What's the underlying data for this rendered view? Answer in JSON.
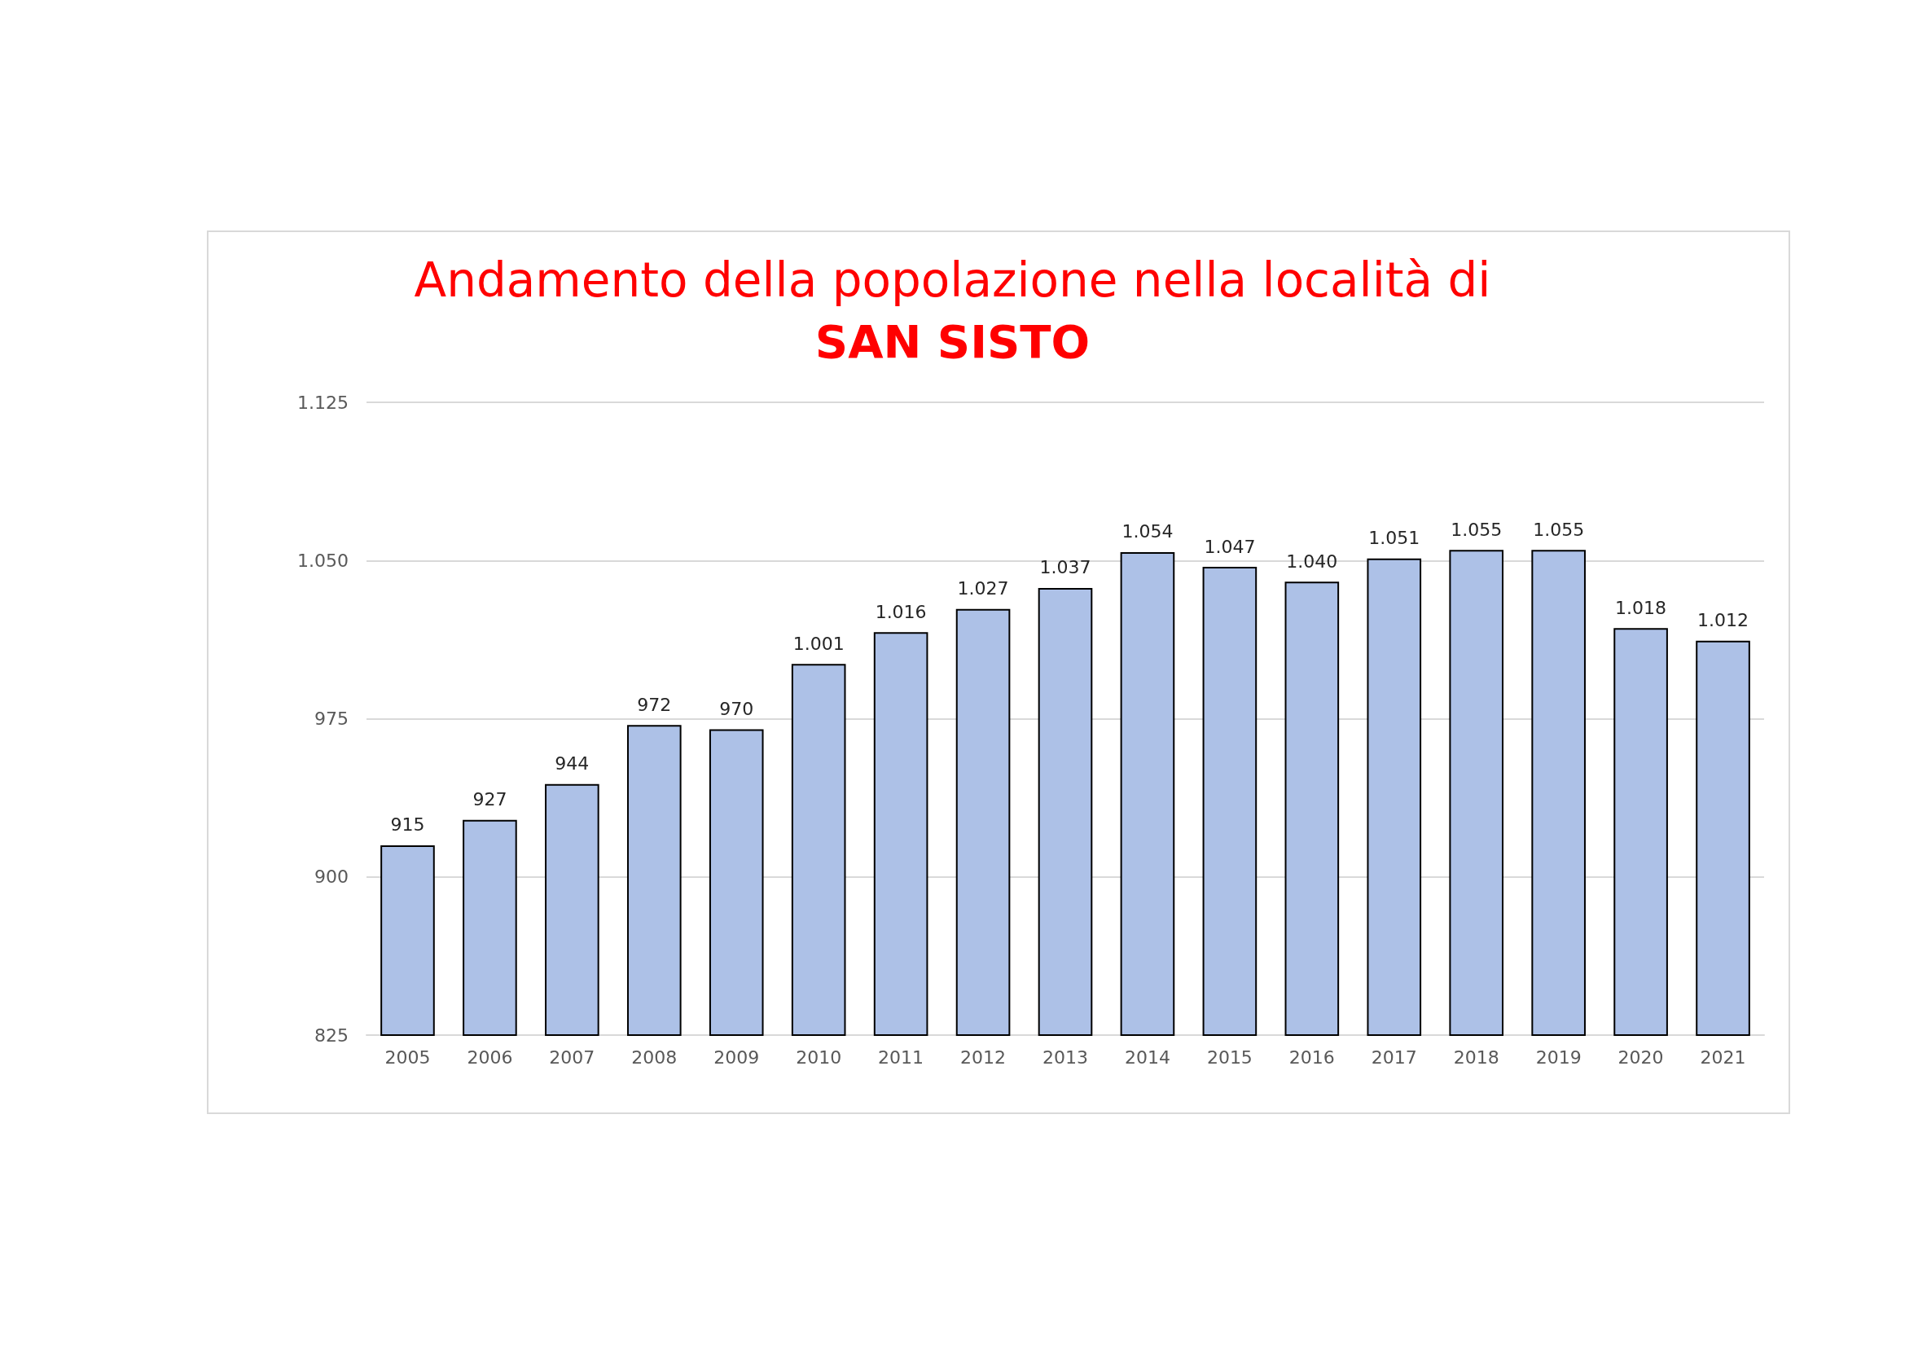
{
  "chart_data": {
    "type": "bar",
    "title": "Andamento della popolazione nella località di",
    "subtitle": "SAN SISTO",
    "categories": [
      "2005",
      "2006",
      "2007",
      "2008",
      "2009",
      "2010",
      "2011",
      "2012",
      "2013",
      "2014",
      "2015",
      "2016",
      "2017",
      "2018",
      "2019",
      "2020",
      "2021"
    ],
    "values": [
      915,
      927,
      944,
      972,
      970,
      1001,
      1016,
      1027,
      1037,
      1054,
      1047,
      1040,
      1051,
      1055,
      1055,
      1018,
      1012
    ],
    "value_labels": [
      "915",
      "927",
      "944",
      "972",
      "970",
      "1.001",
      "1.016",
      "1.027",
      "1.037",
      "1.054",
      "1.047",
      "1.040",
      "1.051",
      "1.055",
      "1.055",
      "1.018",
      "1.012"
    ],
    "color": "#adc1e7",
    "ylim": [
      825,
      1125
    ],
    "yticks": [
      825,
      900,
      975,
      {
        "value": 1050,
        "label": "1.050"
      },
      {
        "value": 1125,
        "label": "1.125"
      }
    ],
    "grid": "y"
  }
}
